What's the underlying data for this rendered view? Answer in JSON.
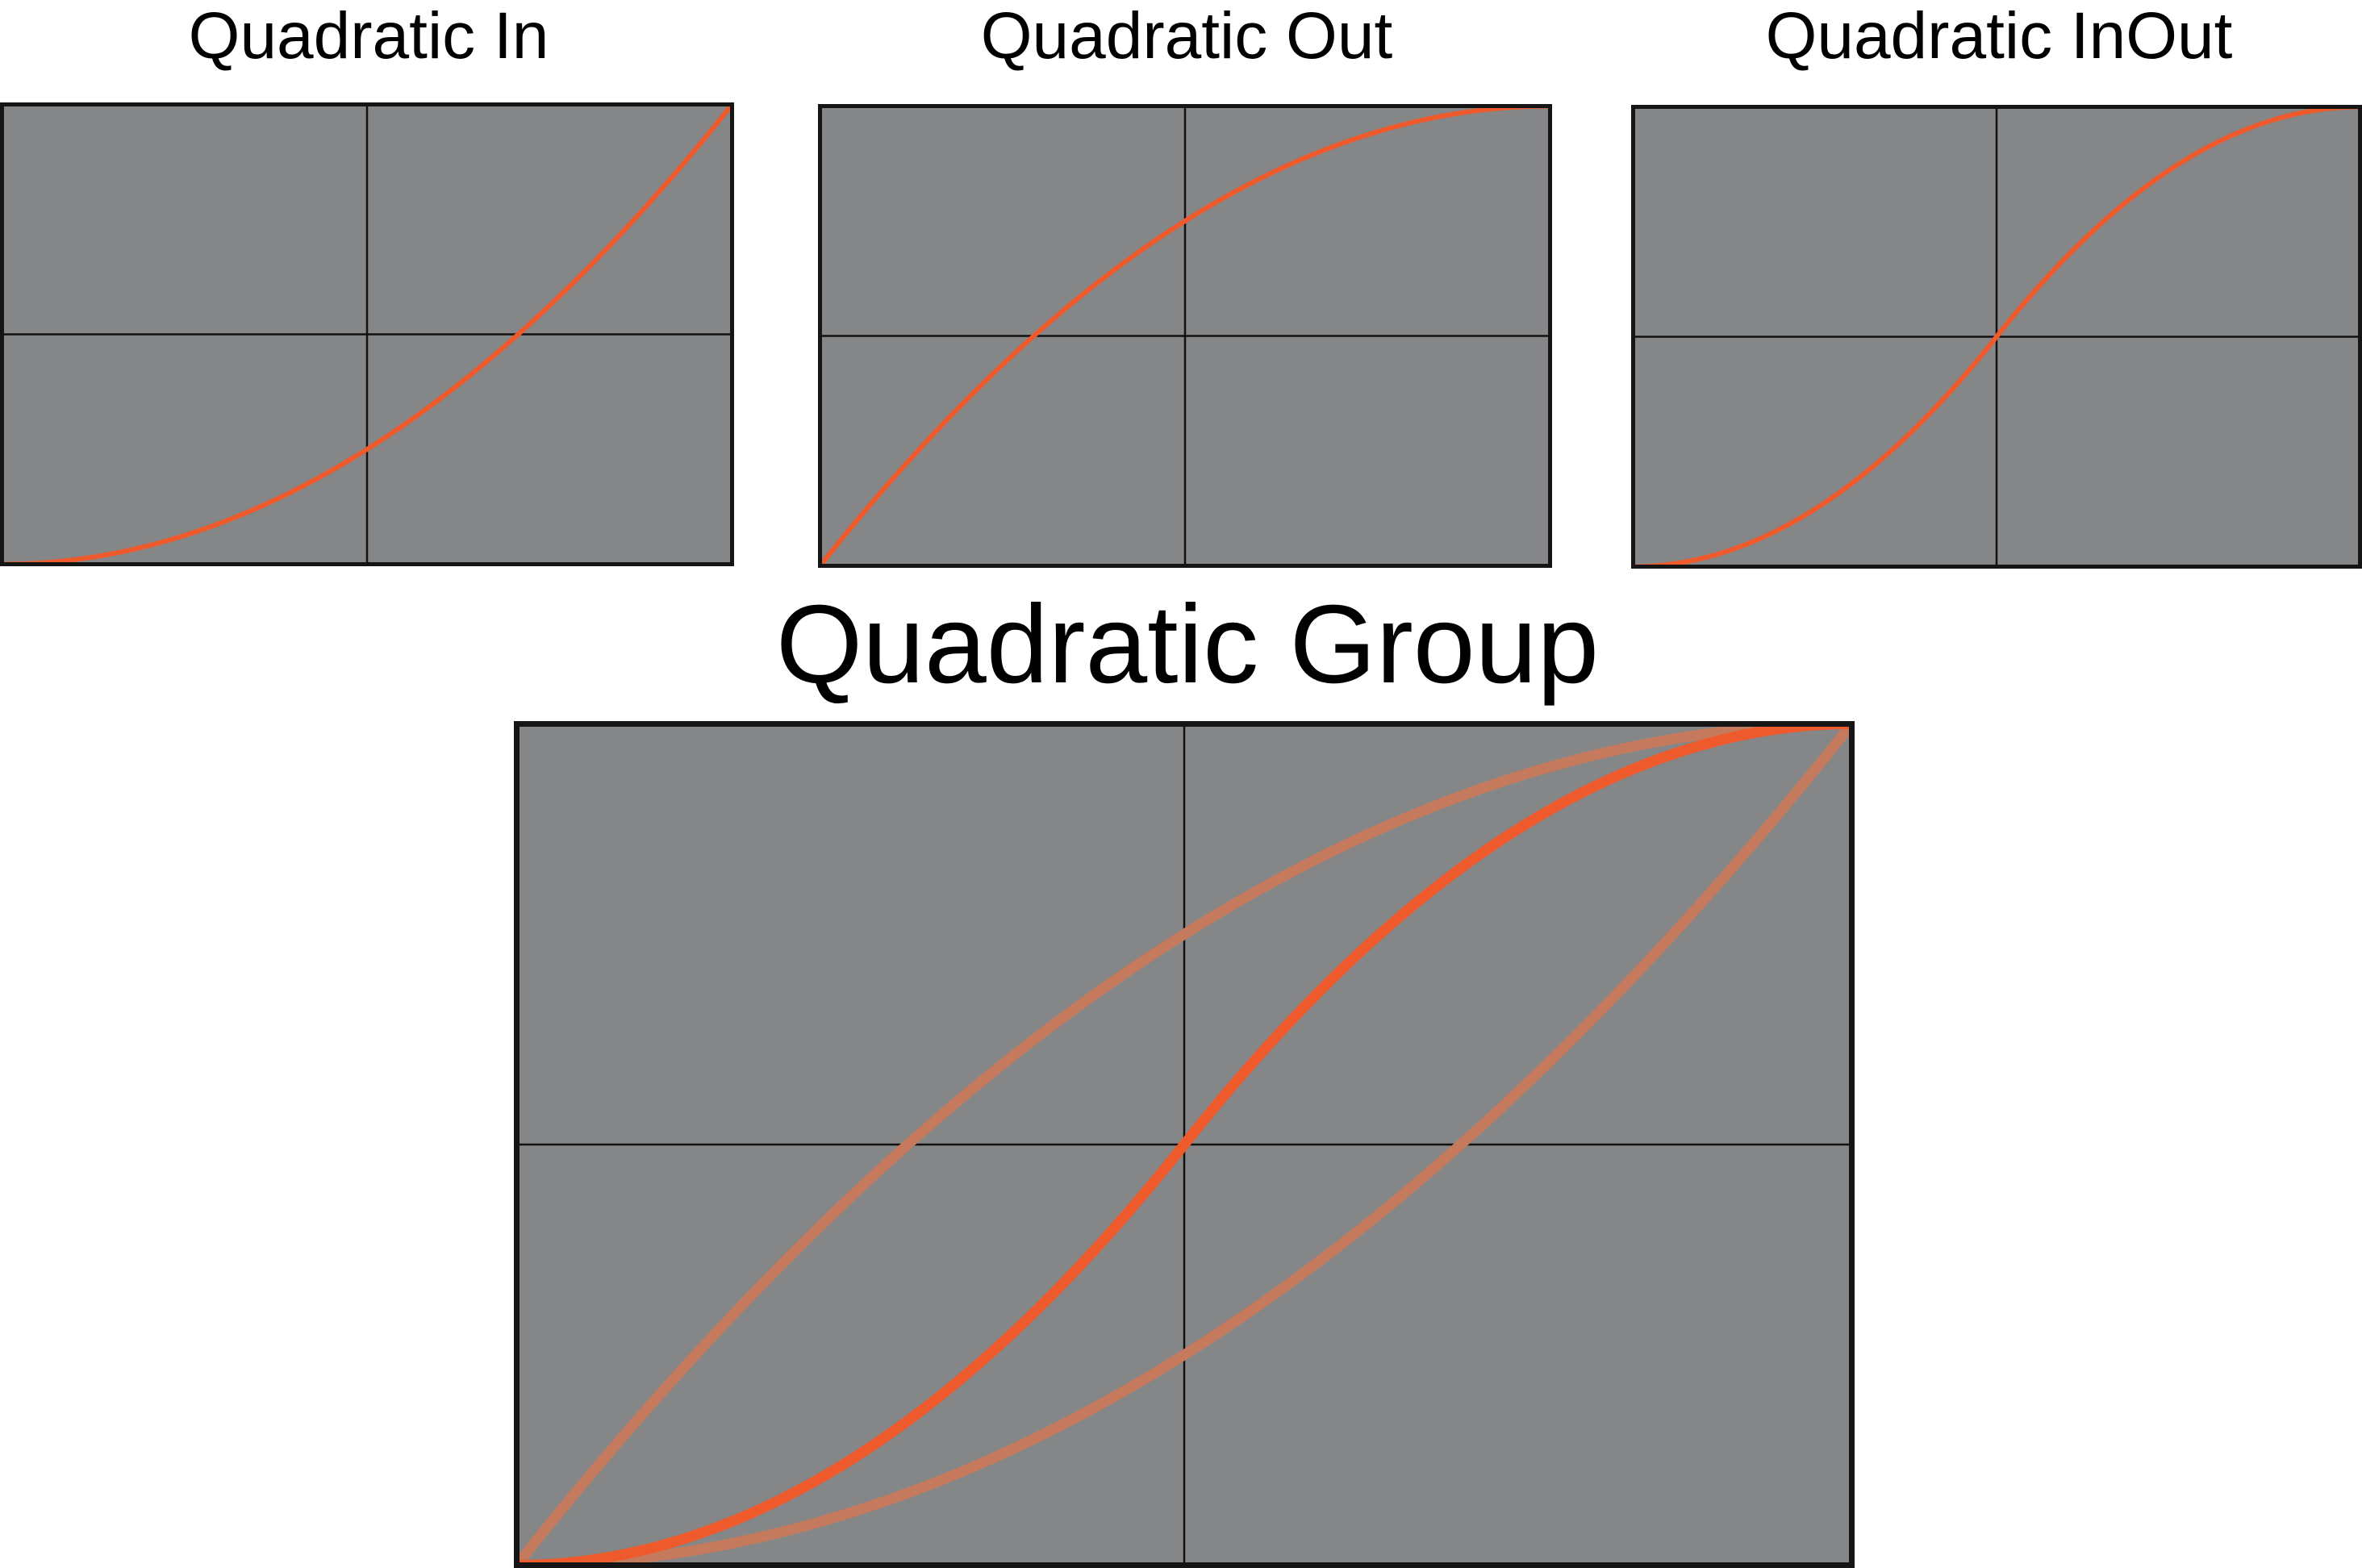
{
  "colors": {
    "panel_background": "#858687",
    "frame": "#151515",
    "gridline": "#111111",
    "curve": "#ef5a2c",
    "curve_faded": "#c57a5d"
  },
  "chart_data": [
    {
      "type": "line",
      "title": "Quadratic In",
      "xlim": [
        0,
        1
      ],
      "ylim": [
        0,
        1
      ],
      "grid": true,
      "x": [
        0,
        0.1,
        0.2,
        0.3,
        0.4,
        0.5,
        0.6,
        0.7,
        0.8,
        0.9,
        1
      ],
      "series": [
        {
          "values": [
            0,
            0.01,
            0.04,
            0.09,
            0.16,
            0.25,
            0.36,
            0.49,
            0.64,
            0.81,
            1
          ]
        }
      ]
    },
    {
      "type": "line",
      "title": "Quadratic Out",
      "xlim": [
        0,
        1
      ],
      "ylim": [
        0,
        1
      ],
      "grid": true,
      "x": [
        0,
        0.1,
        0.2,
        0.3,
        0.4,
        0.5,
        0.6,
        0.7,
        0.8,
        0.9,
        1
      ],
      "series": [
        {
          "values": [
            0,
            0.19,
            0.36,
            0.51,
            0.64,
            0.75,
            0.84,
            0.91,
            0.96,
            0.99,
            1
          ]
        }
      ]
    },
    {
      "type": "line",
      "title": "Quadratic InOut",
      "xlim": [
        0,
        1
      ],
      "ylim": [
        0,
        1
      ],
      "grid": true,
      "x": [
        0,
        0.1,
        0.2,
        0.3,
        0.4,
        0.5,
        0.6,
        0.7,
        0.8,
        0.9,
        1
      ],
      "series": [
        {
          "values": [
            0,
            0.02,
            0.08,
            0.18,
            0.32,
            0.5,
            0.68,
            0.82,
            0.92,
            0.98,
            1
          ]
        }
      ]
    },
    {
      "type": "line",
      "title": "Quadratic Group",
      "xlim": [
        0,
        1
      ],
      "ylim": [
        0,
        1
      ],
      "grid": true,
      "x": [
        0,
        0.1,
        0.2,
        0.3,
        0.4,
        0.5,
        0.6,
        0.7,
        0.8,
        0.9,
        1
      ],
      "series": [
        {
          "values": [
            0,
            0.01,
            0.04,
            0.09,
            0.16,
            0.25,
            0.36,
            0.49,
            0.64,
            0.81,
            1
          ],
          "style": "faded"
        },
        {
          "values": [
            0,
            0.19,
            0.36,
            0.51,
            0.64,
            0.75,
            0.84,
            0.91,
            0.96,
            0.99,
            1
          ],
          "style": "faded"
        },
        {
          "values": [
            0,
            0.02,
            0.08,
            0.18,
            0.32,
            0.5,
            0.68,
            0.82,
            0.92,
            0.98,
            1
          ],
          "style": "highlighted"
        }
      ]
    }
  ]
}
